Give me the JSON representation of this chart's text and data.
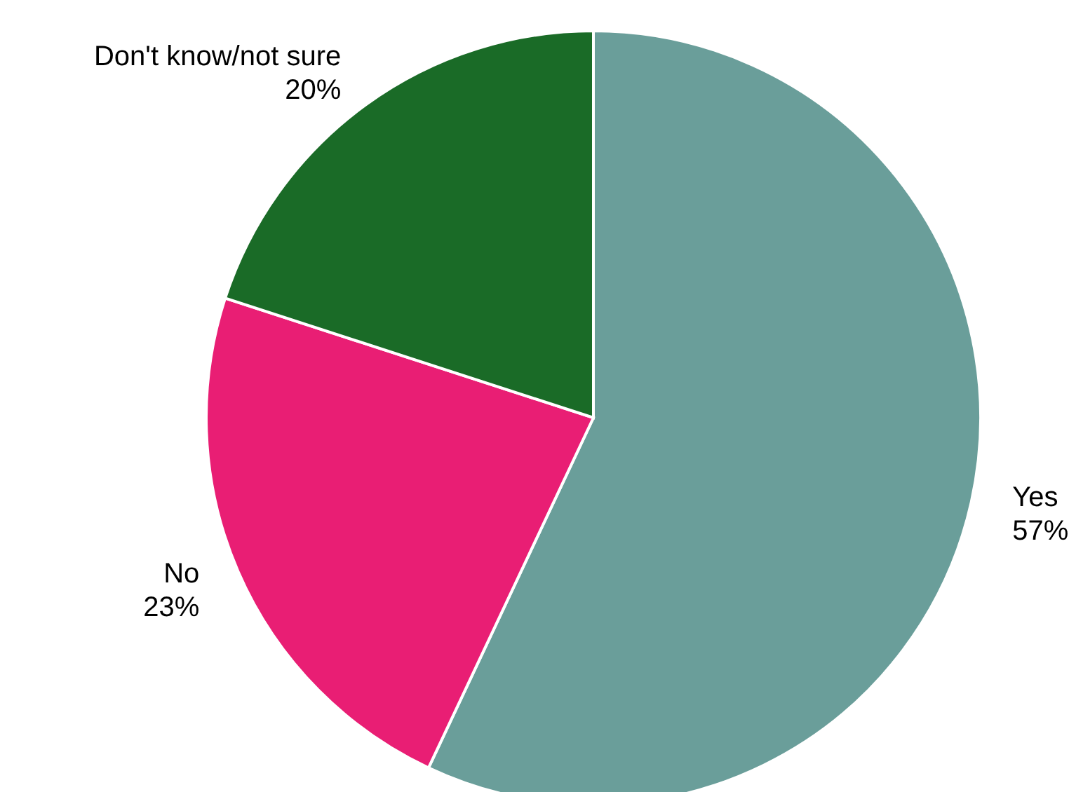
{
  "chart_data": {
    "type": "pie",
    "categories": [
      "Yes",
      "No",
      "Don't know/not sure"
    ],
    "values": [
      57,
      23,
      20
    ],
    "value_labels": [
      "57%",
      "23%",
      "20%"
    ],
    "colors": [
      "#6a9e9a",
      "#e91e74",
      "#1a6b27"
    ]
  }
}
